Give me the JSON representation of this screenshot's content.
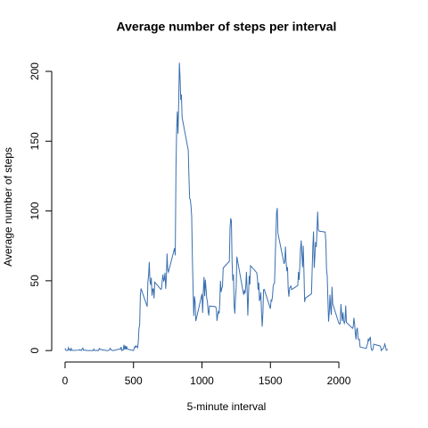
{
  "chart_data": {
    "type": "line",
    "title": "Average number of steps per interval",
    "x_label": "5-minute interval",
    "y_label": "Average number of steps",
    "xlim": [
      -94.2,
      2449.2
    ],
    "ylim": [
      -8.2,
      214.4
    ],
    "xticks": [
      0,
      500,
      1000,
      1500,
      2000
    ],
    "yticks": [
      0,
      50,
      100,
      150,
      200
    ],
    "color": "#3a6fb0",
    "x": [
      0,
      5,
      10,
      15,
      20,
      25,
      30,
      35,
      40,
      45,
      50,
      55,
      100,
      105,
      110,
      115,
      120,
      125,
      130,
      135,
      140,
      145,
      150,
      155,
      200,
      205,
      210,
      215,
      220,
      225,
      230,
      235,
      240,
      245,
      250,
      255,
      300,
      305,
      310,
      315,
      320,
      325,
      330,
      335,
      340,
      345,
      350,
      355,
      400,
      405,
      410,
      415,
      420,
      425,
      430,
      435,
      440,
      445,
      450,
      455,
      500,
      505,
      510,
      515,
      520,
      525,
      530,
      535,
      540,
      545,
      550,
      555,
      600,
      605,
      610,
      615,
      620,
      625,
      630,
      635,
      640,
      645,
      650,
      655,
      700,
      705,
      710,
      715,
      720,
      725,
      730,
      735,
      740,
      745,
      750,
      755,
      800,
      805,
      810,
      815,
      820,
      825,
      830,
      835,
      840,
      845,
      850,
      855,
      900,
      905,
      910,
      915,
      920,
      925,
      930,
      935,
      940,
      945,
      950,
      955,
      1000,
      1005,
      1010,
      1015,
      1020,
      1025,
      1030,
      1035,
      1040,
      1045,
      1050,
      1055,
      1100,
      1105,
      1110,
      1115,
      1120,
      1125,
      1130,
      1135,
      1140,
      1145,
      1150,
      1155,
      1200,
      1205,
      1210,
      1215,
      1220,
      1225,
      1230,
      1235,
      1240,
      1245,
      1250,
      1255,
      1300,
      1305,
      1310,
      1315,
      1320,
      1325,
      1330,
      1335,
      1340,
      1345,
      1350,
      1355,
      1400,
      1405,
      1410,
      1415,
      1420,
      1425,
      1430,
      1435,
      1440,
      1445,
      1450,
      1455,
      1500,
      1505,
      1510,
      1515,
      1520,
      1525,
      1530,
      1535,
      1540,
      1545,
      1550,
      1555,
      1600,
      1605,
      1610,
      1615,
      1620,
      1625,
      1630,
      1635,
      1640,
      1645,
      1650,
      1655,
      1700,
      1705,
      1710,
      1715,
      1720,
      1725,
      1730,
      1735,
      1740,
      1745,
      1750,
      1755,
      1800,
      1805,
      1810,
      1815,
      1820,
      1825,
      1830,
      1835,
      1840,
      1845,
      1850,
      1855,
      1900,
      1905,
      1910,
      1915,
      1920,
      1925,
      1930,
      1935,
      1940,
      1945,
      1950,
      1955,
      2000,
      2005,
      2010,
      2015,
      2020,
      2025,
      2030,
      2035,
      2040,
      2045,
      2050,
      2055,
      2100,
      2105,
      2110,
      2115,
      2120,
      2125,
      2130,
      2135,
      2140,
      2145,
      2150,
      2155,
      2200,
      2205,
      2210,
      2215,
      2220,
      2225,
      2230,
      2235,
      2240,
      2245,
      2250,
      2255,
      2300,
      2305,
      2310,
      2315,
      2320,
      2325,
      2330,
      2335,
      2340,
      2345,
      2350,
      2355
    ],
    "values": [
      1.7,
      0.3,
      0.1,
      0.2,
      0.1,
      2.1,
      0.5,
      0.9,
      0,
      1.5,
      0.3,
      0.1,
      0.3,
      0.7,
      0.2,
      0.3,
      0,
      1.1,
      1.8,
      0.2,
      0.2,
      0.4,
      0.3,
      0,
      0,
      0,
      1.1,
      0,
      0,
      0.1,
      0,
      0.2,
      0,
      0,
      1.5,
      0.9,
      0,
      0,
      0,
      0,
      0.2,
      0.6,
      1.6,
      0.6,
      0.5,
      0.1,
      0,
      0,
      1.2,
      0.9,
      2.6,
      0,
      0.3,
      0.4,
      4.1,
      0.7,
      3.5,
      0.8,
      3.1,
      1.1,
      0,
      1.6,
      3,
      2.2,
      3.3,
      3,
      2.1,
      6.1,
      16,
      18.3,
      39.5,
      44.5,
      31.5,
      49.3,
      53.8,
      63.5,
      50,
      47.1,
      52.2,
      39.3,
      44,
      44.2,
      37.4,
      49,
      43.8,
      44.4,
      50.5,
      54.5,
      49.9,
      51,
      55.7,
      44.3,
      52.3,
      69.5,
      57.8,
      56.2,
      73.4,
      68.2,
      129.4,
      157.5,
      171.2,
      155.4,
      177.3,
      206.2,
      195.9,
      179.6,
      183.4,
      167,
      143.5,
      124,
      109.1,
      108.1,
      103.7,
      96,
      66.2,
      45.2,
      24.8,
      38.8,
      35,
      21.1,
      40.6,
      27,
      42.4,
      52.7,
      38.9,
      50.8,
      44.3,
      37.4,
      34.7,
      28.3,
      25.1,
      31.9,
      31.4,
      29.7,
      21.3,
      25.5,
      28.4,
      26.5,
      33.4,
      50,
      42,
      44.6,
      46,
      59.2,
      63.9,
      87.7,
      94.8,
      92.8,
      63.4,
      50.2,
      54.5,
      32.4,
      26.5,
      37.7,
      45.1,
      67.3,
      42.3,
      39.9,
      43.3,
      41,
      46.2,
      56.4,
      42.8,
      25.1,
      40,
      53.5,
      47.3,
      60.8,
      55.8,
      52,
      43.6,
      48.7,
      35.5,
      37.5,
      41.8,
      27.5,
      17.1,
      26.1,
      43.6,
      43.8,
      30,
      36.1,
      35.5,
      38.8,
      46,
      47.8,
      48.1,
      65.3,
      82.9,
      98.7,
      102.1,
      84,
      62.1,
      64.1,
      74.5,
      63.2,
      56.9,
      59.8,
      43.9,
      38.6,
      44.7,
      45.5,
      46.2,
      43.7,
      46.6,
      56.3,
      50.7,
      61.2,
      72.7,
      78.9,
      68.9,
      59.7,
      75.1,
      56.5,
      34.8,
      37.5,
      40.7,
      58,
      74.7,
      85.3,
      59.3,
      67.8,
      77.7,
      74.2,
      85.3,
      99.5,
      86.6,
      85.6,
      84.9,
      77.8,
      58,
      53.4,
      36.3,
      20.7,
      27.4,
      40,
      30.2,
      25.5,
      45.7,
      33.5,
      19.6,
      19,
      19.3,
      33.3,
      26.8,
      21.2,
      27.3,
      21.3,
      19.5,
      21.3,
      32.3,
      20.2,
      15.9,
      17.2,
      23.5,
      19.2,
      12.5,
      8,
      14.7,
      16.3,
      8.7,
      7.8,
      8.1,
      2.6,
      1.5,
      3.7,
      4.8,
      8.5,
      7.1,
      8.7,
      9.8,
      2.2,
      0.3,
      0.1,
      1.6,
      4.6,
      3.3,
      2.8,
      0,
      0.8,
      1,
      1.6,
      2.6,
      4.7,
      3.3,
      0.6,
      0.2,
      1.1
    ]
  }
}
